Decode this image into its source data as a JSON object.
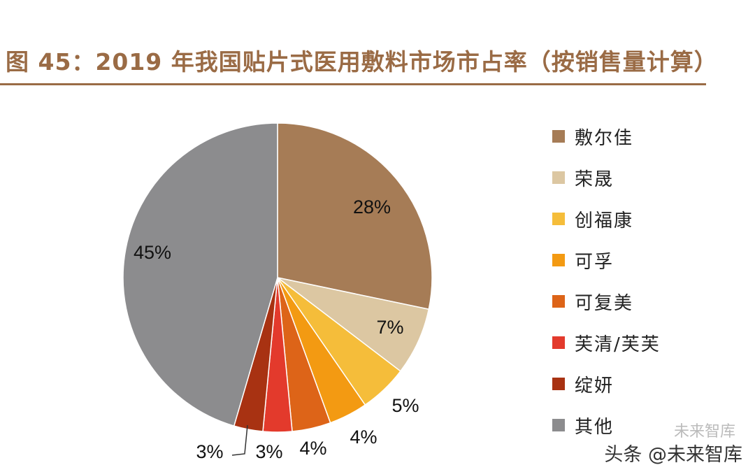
{
  "title": "图 45：2019 年我国贴片式医用敷料市场市占率（按销售量计算）",
  "chart_data": {
    "type": "pie",
    "slices": [
      {
        "name": "敷尔佳",
        "value": 28,
        "label": "28%",
        "color": "#a67c56"
      },
      {
        "name": "荣晟",
        "value": 7,
        "label": "7%",
        "color": "#dcc7a2"
      },
      {
        "name": "创福康",
        "value": 5,
        "label": "5%",
        "color": "#f5bd3a"
      },
      {
        "name": "可孚",
        "value": 4,
        "label": "4%",
        "color": "#f39a12"
      },
      {
        "name": "可复美",
        "value": 4,
        "label": "4%",
        "color": "#dd6418"
      },
      {
        "name": "芙清/芙芙",
        "value": 3,
        "label": "3%",
        "color": "#e33a2c"
      },
      {
        "name": "绽妍",
        "value": 3,
        "label": "3%",
        "color": "#a83212"
      },
      {
        "name": "其他",
        "value": 45,
        "label": "45%",
        "color": "#8c8c8e"
      }
    ],
    "legend_position": "right"
  },
  "watermark": {
    "channel": "未来智库",
    "text": "头条 @未来智库"
  }
}
